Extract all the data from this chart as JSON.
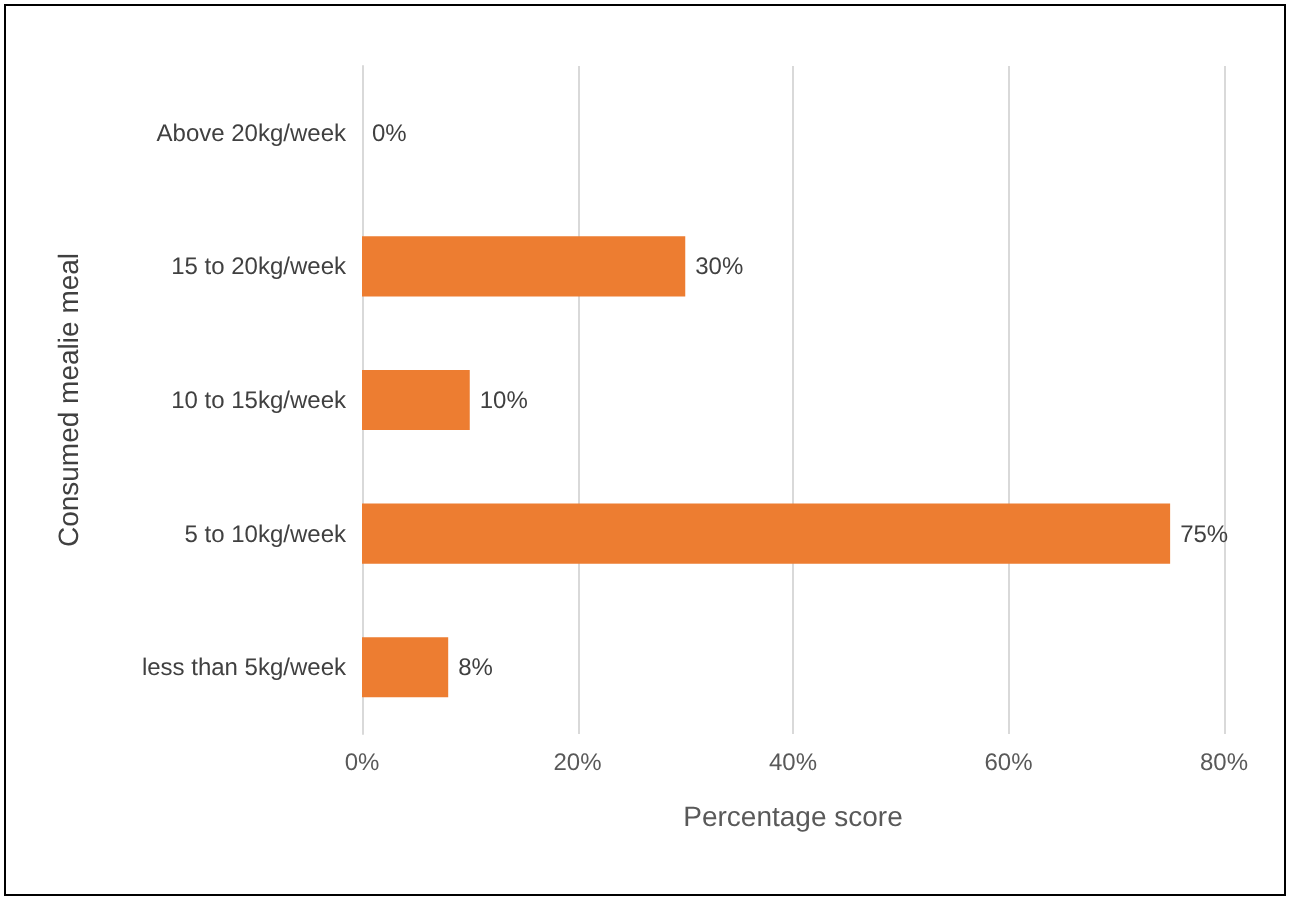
{
  "chart_data": {
    "type": "bar",
    "orientation": "horizontal",
    "xlabel": "Percentage score",
    "ylabel": "Consumed mealie meal",
    "categories": [
      "Above 20kg/week",
      "15 to 20kg/week",
      "10 to 15kg/week",
      "5 to 10kg/week",
      "less than 5kg/week"
    ],
    "values": [
      0,
      30,
      10,
      75,
      8
    ],
    "value_labels": [
      "0%",
      "30%",
      "10%",
      "75%",
      "8%"
    ],
    "color": "#ed7d31",
    "xlim": [
      0,
      80
    ],
    "xticks": [
      {
        "value": 0,
        "label": "0%"
      },
      {
        "value": 20,
        "label": "20%"
      },
      {
        "value": 40,
        "label": "40%"
      },
      {
        "value": 60,
        "label": "60%"
      },
      {
        "value": 80,
        "label": "80%"
      }
    ],
    "grid": "x"
  }
}
